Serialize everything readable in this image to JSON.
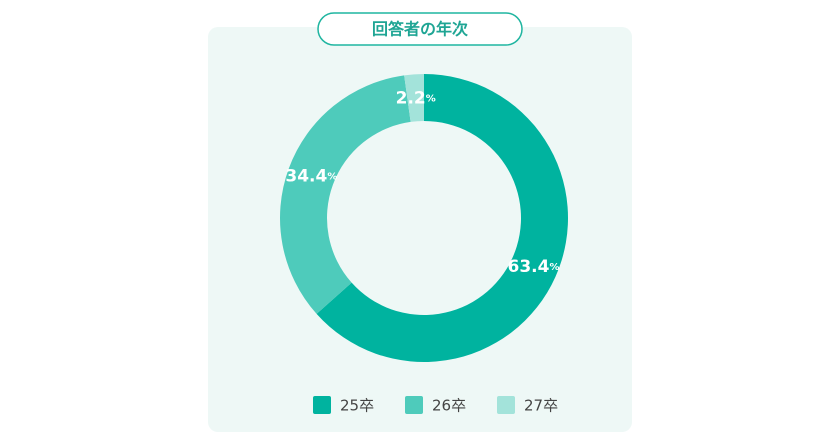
{
  "chart_data": {
    "type": "donut",
    "title": "回答者の年次",
    "categories": [
      "25卒",
      "26卒",
      "27卒"
    ],
    "values": [
      63.4,
      34.4,
      2.2
    ],
    "value_labels": [
      "63.4%",
      "34.4%",
      "2.2%"
    ],
    "colors": [
      "#00b39f",
      "#4ecbbb",
      "#a3e3da"
    ]
  }
}
